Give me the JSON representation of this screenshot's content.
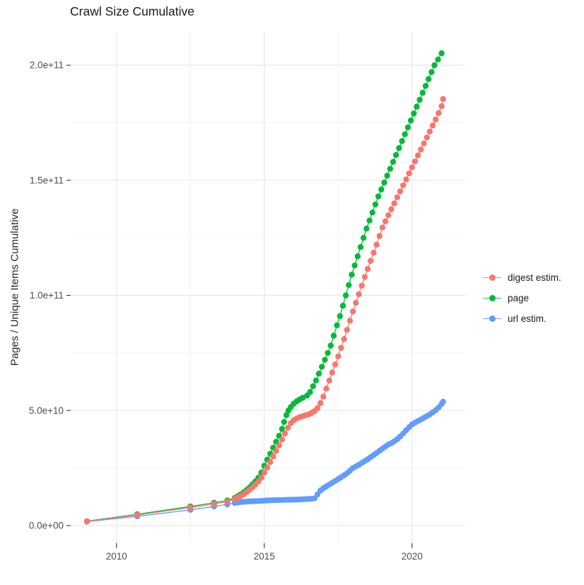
{
  "title": "Crawl Size Cumulative",
  "chart_data": {
    "type": "scatter",
    "title": "Crawl Size Cumulative",
    "xlabel": "",
    "ylabel": "Pages / Unique Items Cumulative",
    "y_unit": "1e9 (values below are billions; axis shows scientific notation)",
    "xlim": [
      2008.45,
      2021.8
    ],
    "ylim": [
      -7.7,
      214.5
    ],
    "grid": true,
    "legend_position": "right",
    "x_ticks": {
      "values": [
        2010,
        2015,
        2020
      ],
      "labels": [
        "2010",
        "2015",
        "2020"
      ],
      "minor": [
        2012.5,
        2017.5
      ]
    },
    "y_ticks": {
      "values": [
        0,
        50,
        100,
        150,
        200
      ],
      "labels": [
        "0.0e+00",
        "5.0e+10",
        "1.0e+11",
        "1.5e+11",
        "2.0e+11"
      ],
      "minor": [
        25,
        75,
        125,
        175
      ]
    },
    "colors": {
      "digest": "#F8766D",
      "page": "#00BA38",
      "url": "#619CFF",
      "grid_major": "#e9e9e9",
      "grid_minor": "#f4f4f4",
      "tick": "#333333",
      "tick_label": "#4d4d4d"
    },
    "series": [
      {
        "name": "digest estim.",
        "color": "#F8766D",
        "points": [
          [
            2009.0,
            1.8
          ],
          [
            2010.7,
            4.6
          ],
          [
            2012.5,
            7.8
          ],
          [
            2013.3,
            9.4
          ],
          [
            2013.75,
            10.4
          ],
          [
            2014.0,
            11.5
          ],
          [
            2014.1,
            12.1
          ],
          [
            2014.2,
            12.8
          ],
          [
            2014.3,
            13.6
          ],
          [
            2014.4,
            14.5
          ],
          [
            2014.5,
            15.5
          ],
          [
            2014.6,
            16.6
          ],
          [
            2014.7,
            17.8
          ],
          [
            2014.8,
            19.1
          ],
          [
            2014.9,
            20.8
          ],
          [
            2015.0,
            23.0
          ],
          [
            2015.1,
            25.2
          ],
          [
            2015.2,
            27.6
          ],
          [
            2015.3,
            30.0
          ],
          [
            2015.4,
            32.4
          ],
          [
            2015.5,
            34.8
          ],
          [
            2015.6,
            37.4
          ],
          [
            2015.7,
            40.0
          ],
          [
            2015.8,
            42.5
          ],
          [
            2015.9,
            44.5
          ],
          [
            2016.0,
            45.8
          ],
          [
            2016.1,
            46.5
          ],
          [
            2016.2,
            47.1
          ],
          [
            2016.3,
            47.5
          ],
          [
            2016.4,
            47.9
          ],
          [
            2016.5,
            48.3
          ],
          [
            2016.6,
            48.9
          ],
          [
            2016.7,
            49.7
          ],
          [
            2016.8,
            51.0
          ],
          [
            2016.9,
            53.2
          ],
          [
            2017.0,
            56.0
          ],
          [
            2017.1,
            59.5
          ],
          [
            2017.2,
            63.0
          ],
          [
            2017.3,
            66.5
          ],
          [
            2017.4,
            70.0
          ],
          [
            2017.5,
            73.5
          ],
          [
            2017.6,
            77.2
          ],
          [
            2017.7,
            81.0
          ],
          [
            2017.8,
            85.0
          ],
          [
            2017.9,
            89.0
          ],
          [
            2018.0,
            93.0
          ],
          [
            2018.1,
            96.8
          ],
          [
            2018.2,
            100.5
          ],
          [
            2018.3,
            104.2
          ],
          [
            2018.4,
            108.0
          ],
          [
            2018.5,
            111.5
          ],
          [
            2018.6,
            115.0
          ],
          [
            2018.7,
            118.5
          ],
          [
            2018.8,
            122.0
          ],
          [
            2018.9,
            125.8
          ],
          [
            2019.0,
            129.5
          ],
          [
            2019.1,
            132.2
          ],
          [
            2019.2,
            134.8
          ],
          [
            2019.3,
            137.4
          ],
          [
            2019.4,
            140.0
          ],
          [
            2019.5,
            142.6
          ],
          [
            2019.6,
            145.2
          ],
          [
            2019.7,
            147.8
          ],
          [
            2019.8,
            150.4
          ],
          [
            2019.9,
            153.0
          ],
          [
            2020.0,
            155.6
          ],
          [
            2020.1,
            158.2
          ],
          [
            2020.2,
            160.8
          ],
          [
            2020.3,
            163.4
          ],
          [
            2020.4,
            166.0
          ],
          [
            2020.5,
            168.6
          ],
          [
            2020.6,
            171.2
          ],
          [
            2020.7,
            173.8
          ],
          [
            2020.8,
            176.4
          ],
          [
            2020.9,
            179.2
          ],
          [
            2021.0,
            182.2
          ],
          [
            2021.05,
            185.3
          ]
        ]
      },
      {
        "name": "page",
        "color": "#00BA38",
        "points": [
          [
            2009.0,
            1.9
          ],
          [
            2010.7,
            4.9
          ],
          [
            2012.5,
            8.3
          ],
          [
            2013.3,
            9.9
          ],
          [
            2013.75,
            10.9
          ],
          [
            2014.0,
            12.0
          ],
          [
            2014.1,
            12.7
          ],
          [
            2014.2,
            13.5
          ],
          [
            2014.3,
            14.4
          ],
          [
            2014.4,
            15.4
          ],
          [
            2014.5,
            16.5
          ],
          [
            2014.6,
            17.8
          ],
          [
            2014.7,
            19.2
          ],
          [
            2014.8,
            20.8
          ],
          [
            2014.9,
            23.0
          ],
          [
            2015.0,
            26.0
          ],
          [
            2015.1,
            28.6
          ],
          [
            2015.2,
            31.2
          ],
          [
            2015.3,
            33.8
          ],
          [
            2015.4,
            36.4
          ],
          [
            2015.5,
            39.0
          ],
          [
            2015.6,
            42.0
          ],
          [
            2015.67,
            45.0
          ],
          [
            2015.75,
            48.0
          ],
          [
            2015.82,
            50.0
          ],
          [
            2015.9,
            51.5
          ],
          [
            2016.0,
            53.0
          ],
          [
            2016.1,
            54.0
          ],
          [
            2016.2,
            54.8
          ],
          [
            2016.3,
            55.5
          ],
          [
            2016.45,
            56.5
          ],
          [
            2016.55,
            58.0
          ],
          [
            2016.65,
            60.5
          ],
          [
            2016.75,
            63.0
          ],
          [
            2016.85,
            66.0
          ],
          [
            2016.95,
            69.0
          ],
          [
            2017.05,
            72.0
          ],
          [
            2017.15,
            75.0
          ],
          [
            2017.25,
            78.2
          ],
          [
            2017.35,
            82.5
          ],
          [
            2017.46,
            87.0
          ],
          [
            2017.56,
            91.0
          ],
          [
            2017.66,
            95.5
          ],
          [
            2017.76,
            100.0
          ],
          [
            2017.86,
            104.5
          ],
          [
            2017.96,
            109.0
          ],
          [
            2018.06,
            113.0
          ],
          [
            2018.16,
            117.0
          ],
          [
            2018.26,
            121.0
          ],
          [
            2018.36,
            125.0
          ],
          [
            2018.46,
            129.0
          ],
          [
            2018.56,
            132.5
          ],
          [
            2018.66,
            136.0
          ],
          [
            2018.76,
            139.5
          ],
          [
            2018.86,
            143.0
          ],
          [
            2018.96,
            146.0
          ],
          [
            2019.06,
            149.0
          ],
          [
            2019.16,
            152.0
          ],
          [
            2019.26,
            155.0
          ],
          [
            2019.36,
            158.0
          ],
          [
            2019.46,
            161.0
          ],
          [
            2019.56,
            164.0
          ],
          [
            2019.66,
            167.0
          ],
          [
            2019.76,
            170.0
          ],
          [
            2019.86,
            173.0
          ],
          [
            2019.96,
            176.0
          ],
          [
            2020.06,
            179.0
          ],
          [
            2020.16,
            182.0
          ],
          [
            2020.26,
            185.0
          ],
          [
            2020.36,
            188.0
          ],
          [
            2020.46,
            191.0
          ],
          [
            2020.56,
            194.0
          ],
          [
            2020.66,
            197.0
          ],
          [
            2020.76,
            200.0
          ],
          [
            2020.88,
            202.5
          ],
          [
            2021.0,
            205.2
          ]
        ]
      },
      {
        "name": "url estim.",
        "color": "#619CFF",
        "points": [
          [
            2009.0,
            1.7
          ],
          [
            2010.7,
            4.0
          ],
          [
            2012.5,
            6.8
          ],
          [
            2013.3,
            8.3
          ],
          [
            2013.75,
            9.2
          ],
          [
            2014.0,
            9.8
          ],
          [
            2014.1,
            10.0
          ],
          [
            2014.2,
            10.2
          ],
          [
            2014.3,
            10.3
          ],
          [
            2014.4,
            10.4
          ],
          [
            2014.5,
            10.5
          ],
          [
            2014.6,
            10.55
          ],
          [
            2014.7,
            10.6
          ],
          [
            2014.8,
            10.65
          ],
          [
            2014.9,
            10.7
          ],
          [
            2015.0,
            10.8
          ],
          [
            2015.1,
            10.9
          ],
          [
            2015.2,
            10.95
          ],
          [
            2015.3,
            11.0
          ],
          [
            2015.4,
            11.05
          ],
          [
            2015.5,
            11.1
          ],
          [
            2015.6,
            11.12
          ],
          [
            2015.7,
            11.15
          ],
          [
            2015.8,
            11.18
          ],
          [
            2015.9,
            11.2
          ],
          [
            2016.0,
            11.25
          ],
          [
            2016.1,
            11.3
          ],
          [
            2016.2,
            11.35
          ],
          [
            2016.3,
            11.4
          ],
          [
            2016.4,
            11.5
          ],
          [
            2016.5,
            11.55
          ],
          [
            2016.6,
            11.65
          ],
          [
            2016.7,
            11.8
          ],
          [
            2016.8,
            13.5
          ],
          [
            2016.9,
            15.2
          ],
          [
            2017.0,
            16.2
          ],
          [
            2017.1,
            17.0
          ],
          [
            2017.2,
            17.8
          ],
          [
            2017.3,
            18.6
          ],
          [
            2017.4,
            19.4
          ],
          [
            2017.5,
            20.2
          ],
          [
            2017.6,
            21.0
          ],
          [
            2017.7,
            21.8
          ],
          [
            2017.8,
            22.7
          ],
          [
            2017.9,
            23.8
          ],
          [
            2018.0,
            25.0
          ],
          [
            2018.1,
            25.7
          ],
          [
            2018.2,
            26.4
          ],
          [
            2018.3,
            27.2
          ],
          [
            2018.4,
            28.0
          ],
          [
            2018.5,
            28.8
          ],
          [
            2018.6,
            29.7
          ],
          [
            2018.7,
            30.6
          ],
          [
            2018.8,
            31.5
          ],
          [
            2018.9,
            32.5
          ],
          [
            2019.0,
            33.4
          ],
          [
            2019.1,
            34.3
          ],
          [
            2019.2,
            35.2
          ],
          [
            2019.3,
            35.8
          ],
          [
            2019.4,
            36.6
          ],
          [
            2019.5,
            37.5
          ],
          [
            2019.6,
            38.7
          ],
          [
            2019.7,
            40.0
          ],
          [
            2019.8,
            41.4
          ],
          [
            2019.9,
            42.7
          ],
          [
            2020.0,
            43.9
          ],
          [
            2020.1,
            44.7
          ],
          [
            2020.2,
            45.4
          ],
          [
            2020.3,
            46.1
          ],
          [
            2020.4,
            46.8
          ],
          [
            2020.5,
            47.5
          ],
          [
            2020.6,
            48.3
          ],
          [
            2020.7,
            49.2
          ],
          [
            2020.8,
            50.1
          ],
          [
            2020.9,
            51.3
          ],
          [
            2021.0,
            52.8
          ],
          [
            2021.05,
            53.8
          ]
        ]
      }
    ]
  },
  "legend": {
    "items": [
      {
        "label": "digest estim."
      },
      {
        "label": "page"
      },
      {
        "label": "url estim."
      }
    ]
  }
}
